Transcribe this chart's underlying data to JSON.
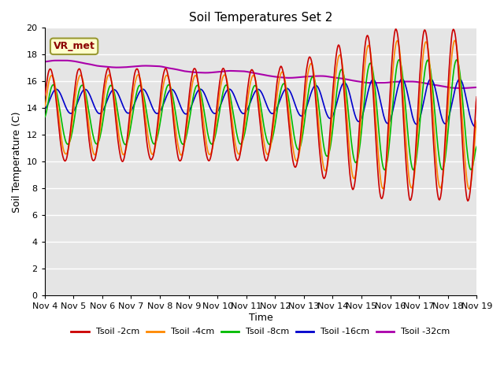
{
  "title": "Soil Temperatures Set 2",
  "xlabel": "Time",
  "ylabel": "Soil Temperature (C)",
  "ylim": [
    0,
    20
  ],
  "yticks": [
    0,
    2,
    4,
    6,
    8,
    10,
    12,
    14,
    16,
    18,
    20
  ],
  "xtick_labels": [
    "Nov 4",
    "Nov 5",
    "Nov 6",
    "Nov 7",
    "Nov 8",
    "Nov 9",
    "Nov 10",
    "Nov 11",
    "Nov 12",
    "Nov 13",
    "Nov 14",
    "Nov 15",
    "Nov 16",
    "Nov 17",
    "Nov 18",
    "Nov 19"
  ],
  "annotation_text": "VR_met",
  "colors": {
    "tsoil_2cm": "#cc0000",
    "tsoil_4cm": "#ff8800",
    "tsoil_8cm": "#00bb00",
    "tsoil_16cm": "#0000cc",
    "tsoil_32cm": "#aa00aa"
  },
  "legend_labels": [
    "Tsoil -2cm",
    "Tsoil -4cm",
    "Tsoil -8cm",
    "Tsoil -16cm",
    "Tsoil -32cm"
  ],
  "plot_bg": "#e5e5e5",
  "fig_bg": "#ffffff",
  "n_points": 720,
  "days": 15
}
